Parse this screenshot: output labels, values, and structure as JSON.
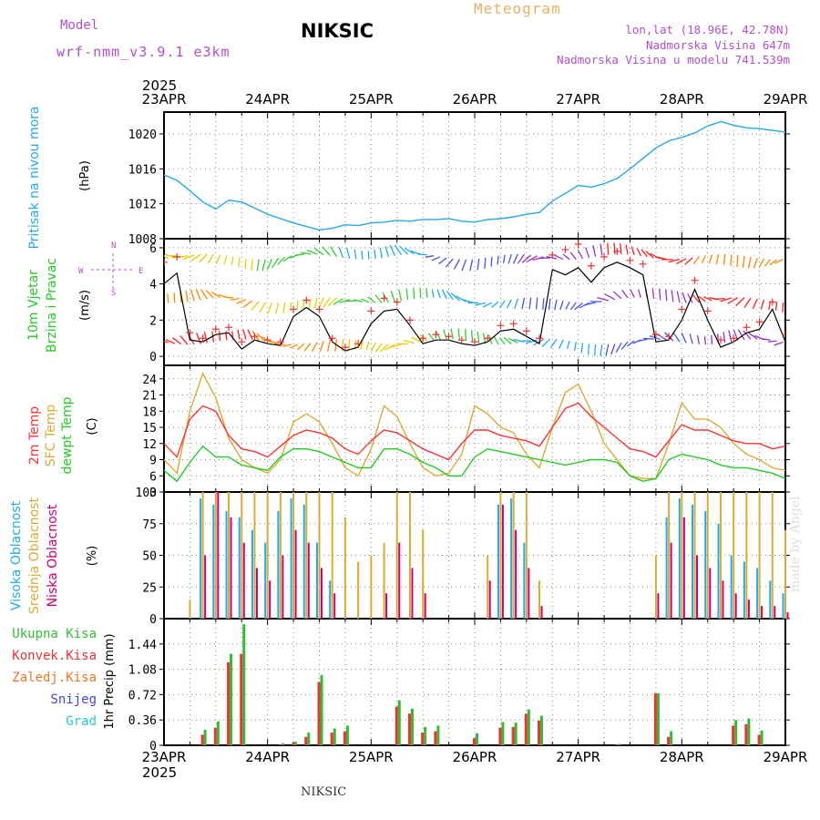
{
  "header": {
    "model_label": "Model",
    "model_name": "wrf-nmm_v3.9.1 e3km",
    "station": "NIKSIC",
    "meteogram": "Meteogram",
    "coords": "lon,lat (18.96E, 42.78N)",
    "altitude": "Nadmorska Visina 647m",
    "model_altitude": "Nadmorska Visina u modelu 741.539m",
    "footer_station": "NIKSIC",
    "credit": "made by Angel"
  },
  "colors": {
    "pressure": "#22aaee",
    "temp": "#ff3333",
    "sfc": "#ddaa33",
    "dew": "#22cc22",
    "high_cloud": "#22aaee",
    "mid_cloud": "#ddaa33",
    "low_cloud": "#cc0077",
    "total_precip": "#33bb33",
    "conv_precip": "#ee3333",
    "grid": "#888888",
    "wind_speed": "#000000",
    "gust": "#ee3333"
  },
  "chart_data": [
    {
      "type": "line",
      "title": "Pritisak na nivou mora",
      "ylabel": "(hPa)",
      "ylim": [
        1008,
        1022.5
      ],
      "yticks": [
        "1008",
        "1012",
        "1016",
        "1020"
      ],
      "x": [
        0,
        3,
        6,
        9,
        12,
        15,
        18,
        21,
        24,
        27,
        30,
        33,
        36,
        39,
        42,
        45,
        48,
        51,
        54,
        57,
        60,
        63,
        66,
        69,
        72,
        75,
        78,
        81,
        84,
        87,
        90,
        93,
        96,
        99,
        102,
        105,
        108,
        111,
        114,
        117,
        120,
        123,
        126,
        129,
        132,
        135,
        138,
        141,
        144
      ],
      "series": [
        {
          "name": "MSLP",
          "values": [
            1015.3,
            1014.7,
            1013.5,
            1012.2,
            1011.4,
            1012.4,
            1012.2,
            1011.5,
            1010.8,
            1010.3,
            1009.8,
            1009.4,
            1009.0,
            1009.2,
            1009.6,
            1009.5,
            1009.8,
            1009.9,
            1010.1,
            1010.0,
            1010.2,
            1010.2,
            1010.3,
            1010.0,
            1009.9,
            1010.2,
            1010.3,
            1010.5,
            1010.8,
            1011.0,
            1012.3,
            1013.2,
            1014.1,
            1013.9,
            1014.3,
            1014.9,
            1016.0,
            1017.2,
            1018.4,
            1019.2,
            1019.6,
            1020.1,
            1020.9,
            1021.4,
            1021.0,
            1020.7,
            1020.6,
            1020.4,
            1020.2
          ]
        }
      ]
    },
    {
      "type": "line",
      "title": "10m Vjetar Brzina i Pravac",
      "ylabel": "(m/s)",
      "ylim": [
        -0.5,
        6.5
      ],
      "yticks": [
        "0",
        "2",
        "4",
        "6"
      ],
      "direction_legend": {
        "north": "N",
        "east": "E",
        "south": "S",
        "west": "W"
      },
      "x": [
        0,
        3,
        6,
        9,
        12,
        15,
        18,
        21,
        24,
        27,
        30,
        33,
        36,
        39,
        42,
        45,
        48,
        51,
        54,
        57,
        60,
        63,
        66,
        69,
        72,
        75,
        78,
        81,
        84,
        87,
        90,
        93,
        96,
        99,
        102,
        105,
        108,
        111,
        114,
        117,
        120,
        123,
        126,
        129,
        132,
        135,
        138,
        141,
        144
      ],
      "series": [
        {
          "name": "Brzina",
          "values": [
            4.0,
            4.6,
            0.9,
            0.8,
            1.2,
            1.3,
            0.4,
            0.9,
            0.7,
            0.6,
            2.2,
            2.7,
            2.2,
            0.8,
            0.3,
            0.5,
            1.8,
            2.5,
            2.6,
            1.7,
            0.7,
            0.9,
            0.9,
            0.7,
            0.6,
            0.8,
            1.4,
            1.5,
            1.1,
            0.7,
            4.8,
            4.5,
            4.9,
            4.1,
            4.9,
            5.2,
            4.9,
            4.5,
            0.8,
            0.9,
            2.0,
            3.7,
            2.0,
            0.5,
            0.8,
            1.3,
            1.5,
            2.6,
            0.8
          ]
        },
        {
          "name": "Udari",
          "values": [
            5.2,
            5.5,
            1.3,
            1.0,
            1.5,
            1.6,
            0.8,
            1.1,
            0.9,
            0.8,
            2.6,
            3.1,
            2.6,
            1.0,
            0.5,
            0.7,
            2.5,
            3.2,
            3.0,
            2.0,
            1.0,
            1.2,
            1.1,
            0.9,
            0.8,
            1.0,
            1.7,
            1.8,
            1.4,
            1.0,
            5.6,
            5.9,
            6.2,
            5.0,
            5.5,
            5.8,
            5.3,
            5.1,
            1.2,
            1.1,
            2.6,
            4.2,
            2.5,
            0.9,
            1.0,
            1.6,
            1.9,
            3.0,
            1.2
          ]
        }
      ]
    },
    {
      "type": "line",
      "title": "2m Temp / SFC Temp / dewpt Temp",
      "ylabel": "(C)",
      "ylim": [
        3,
        26.5
      ],
      "yticks": [
        "3",
        "6",
        "9",
        "12",
        "15",
        "18",
        "21",
        "24"
      ],
      "x": [
        0,
        3,
        6,
        9,
        12,
        15,
        18,
        21,
        24,
        27,
        30,
        33,
        36,
        39,
        42,
        45,
        48,
        51,
        54,
        57,
        60,
        63,
        66,
        69,
        72,
        75,
        78,
        81,
        84,
        87,
        90,
        93,
        96,
        99,
        102,
        105,
        108,
        111,
        114,
        117,
        120,
        123,
        126,
        129,
        132,
        135,
        138,
        141,
        144
      ],
      "series": [
        {
          "name": "2m Temp",
          "values": [
            12.0,
            9.5,
            16.5,
            19.0,
            18.0,
            13.5,
            11.0,
            10.5,
            9.5,
            11.5,
            13.5,
            14.5,
            14.0,
            13.0,
            11.0,
            10.0,
            12.5,
            14.5,
            14.0,
            12.5,
            11.0,
            10.0,
            9.0,
            12.0,
            14.5,
            14.5,
            13.5,
            13.0,
            12.5,
            11.5,
            15.0,
            18.5,
            19.5,
            17.0,
            15.0,
            13.0,
            11.0,
            10.5,
            9.5,
            12.5,
            15.5,
            14.5,
            14.5,
            13.5,
            12.5,
            12.0,
            12.0,
            11.0,
            11.5
          ]
        },
        {
          "name": "SFC Temp",
          "values": [
            9.0,
            6.5,
            18.0,
            25.0,
            20.5,
            13.0,
            9.0,
            7.5,
            6.5,
            9.0,
            16.0,
            17.5,
            16.0,
            12.0,
            7.5,
            6.0,
            11.0,
            19.0,
            17.0,
            12.0,
            7.5,
            6.0,
            6.5,
            10.0,
            19.0,
            17.5,
            15.0,
            14.0,
            10.0,
            7.5,
            15.0,
            21.5,
            23.0,
            18.0,
            12.0,
            9.0,
            6.0,
            5.5,
            5.5,
            12.0,
            19.5,
            16.5,
            16.5,
            15.0,
            12.0,
            10.0,
            9.0,
            7.5,
            7.0
          ]
        },
        {
          "name": "dewpt Temp",
          "values": [
            7.0,
            5.0,
            8.5,
            11.5,
            9.5,
            9.5,
            8.0,
            7.5,
            7.0,
            9.5,
            11.0,
            11.0,
            10.5,
            9.5,
            8.5,
            7.5,
            7.5,
            11.0,
            11.0,
            10.0,
            8.5,
            7.5,
            6.0,
            6.0,
            9.5,
            11.0,
            10.5,
            10.0,
            9.5,
            9.0,
            8.5,
            8.0,
            8.5,
            9.0,
            9.0,
            8.5,
            6.0,
            5.0,
            5.5,
            9.0,
            10.0,
            9.5,
            9.0,
            8.0,
            7.5,
            7.5,
            7.0,
            6.5,
            5.5
          ]
        }
      ]
    },
    {
      "type": "bar",
      "title": "Visoka Oblacnost / Srednja Oblacnost / Niska Oblacnost",
      "ylabel": "(%)",
      "ylim": [
        0,
        100
      ],
      "yticks": [
        "0",
        "25",
        "50",
        "75",
        "100"
      ],
      "x": [
        0,
        3,
        6,
        9,
        12,
        15,
        18,
        21,
        24,
        27,
        30,
        33,
        36,
        39,
        42,
        45,
        48,
        51,
        54,
        57,
        60,
        63,
        66,
        69,
        72,
        75,
        78,
        81,
        84,
        87,
        90,
        93,
        96,
        99,
        102,
        105,
        108,
        111,
        114,
        117,
        120,
        123,
        126,
        129,
        132,
        135,
        138,
        141,
        144
      ],
      "series": [
        {
          "name": "Visoka Oblacnost",
          "values": [
            0,
            0,
            0,
            95,
            90,
            85,
            80,
            70,
            60,
            85,
            95,
            90,
            60,
            30,
            0,
            0,
            0,
            0,
            0,
            0,
            0,
            0,
            0,
            0,
            0,
            0,
            90,
            95,
            60,
            0,
            0,
            0,
            0,
            0,
            0,
            0,
            0,
            0,
            0,
            80,
            95,
            90,
            85,
            75,
            50,
            45,
            40,
            30,
            20
          ]
        },
        {
          "name": "Srednja Oblacnost",
          "values": [
            0,
            0,
            15,
            100,
            100,
            100,
            100,
            100,
            100,
            100,
            100,
            100,
            100,
            100,
            80,
            45,
            50,
            60,
            100,
            100,
            70,
            0,
            0,
            0,
            0,
            50,
            100,
            100,
            100,
            30,
            0,
            0,
            0,
            0,
            0,
            0,
            0,
            0,
            50,
            100,
            100,
            100,
            100,
            100,
            100,
            100,
            100,
            100,
            70
          ]
        },
        {
          "name": "Niska Oblacnost",
          "values": [
            0,
            0,
            0,
            50,
            100,
            80,
            60,
            40,
            30,
            50,
            70,
            60,
            40,
            20,
            0,
            0,
            0,
            20,
            60,
            40,
            20,
            0,
            0,
            0,
            0,
            30,
            90,
            70,
            40,
            10,
            0,
            0,
            0,
            0,
            0,
            0,
            0,
            0,
            20,
            60,
            80,
            50,
            40,
            30,
            20,
            15,
            10,
            10,
            5
          ]
        }
      ]
    },
    {
      "type": "bar",
      "title": "1hr Precip",
      "ylabel": "1hr Precip (mm)",
      "ylim": [
        0,
        1.8
      ],
      "yticks": [
        "0",
        "0.36",
        "0.72",
        "1.08",
        "1.44"
      ],
      "legend": [
        "Ukupna Kisa",
        "Konvek.Kisa",
        "Zaledj.Kisa",
        "Snijeg",
        "Grad"
      ],
      "x": [
        0,
        3,
        6,
        9,
        12,
        15,
        18,
        21,
        24,
        27,
        30,
        33,
        36,
        39,
        42,
        45,
        48,
        51,
        54,
        57,
        60,
        63,
        66,
        69,
        72,
        75,
        78,
        81,
        84,
        87,
        90,
        93,
        96,
        99,
        102,
        105,
        108,
        111,
        114,
        117,
        120,
        123,
        126,
        129,
        132,
        135,
        138,
        141,
        144
      ],
      "series": [
        {
          "name": "Ukupna Kisa",
          "values": [
            0,
            0,
            0,
            0.22,
            0.34,
            1.3,
            1.72,
            0,
            0,
            0.03,
            0.05,
            0.18,
            1.0,
            0.24,
            0.28,
            0,
            0,
            0,
            0.64,
            0.52,
            0.26,
            0.28,
            0,
            0,
            0.17,
            0,
            0.33,
            0.32,
            0.51,
            0.42,
            0,
            0,
            0,
            0,
            0,
            0.02,
            0,
            0,
            0.74,
            0.2,
            0,
            0,
            0,
            0,
            0.36,
            0.38,
            0.21,
            0,
            0
          ]
        },
        {
          "name": "Konvek.Kisa",
          "values": [
            0,
            0,
            0,
            0.15,
            0.25,
            1.18,
            1.3,
            0,
            0,
            0.01,
            0.03,
            0.12,
            0.9,
            0.18,
            0.2,
            0,
            0,
            0,
            0.55,
            0.45,
            0.18,
            0.2,
            0,
            0,
            0.1,
            0,
            0.25,
            0.26,
            0.45,
            0.35,
            0,
            0,
            0,
            0,
            0,
            0.01,
            0,
            0,
            0.74,
            0.12,
            0,
            0,
            0,
            0,
            0.28,
            0.3,
            0.15,
            0,
            0
          ]
        }
      ]
    }
  ],
  "axis": {
    "year": "2025",
    "x_min": 0,
    "x_max": 144,
    "days": [
      {
        "label": "23APR",
        "hour": 0
      },
      {
        "label": "24APR",
        "hour": 24
      },
      {
        "label": "25APR",
        "hour": 48
      },
      {
        "label": "26APR",
        "hour": 72
      },
      {
        "label": "27APR",
        "hour": 96
      },
      {
        "label": "28APR",
        "hour": 120
      },
      {
        "label": "29APR",
        "hour": 144
      }
    ]
  },
  "panel_labels": {
    "pressure": [
      "Pritisak na nivou mora"
    ],
    "pressure_unit": "(hPa)",
    "wind": [
      "10m Vjetar",
      "Brzina i Pravac"
    ],
    "wind_unit": "(m/s)",
    "temp": [
      {
        "text": "2m Temp",
        "color": "temp"
      },
      {
        "text": "SFC Temp",
        "color": "sfc"
      },
      {
        "text": "dewpt Temp",
        "color": "dew"
      }
    ],
    "temp_unit": "(C)",
    "cloud": [
      {
        "text": "Visoka Oblacnost",
        "color": "high_cloud"
      },
      {
        "text": "Srednja Oblacnost",
        "color": "mid_cloud"
      },
      {
        "text": "Niska Oblacnost",
        "color": "low_cloud"
      }
    ],
    "cloud_unit": "(%)",
    "precip": [
      {
        "text": "Ukupna Kisa",
        "color": "#33bb33"
      },
      {
        "text": "Konvek.Kisa",
        "color": "#ee3333"
      },
      {
        "text": "Zaledj.Kisa",
        "color": "#ee7722"
      },
      {
        "text": "Snijeg",
        "color": "#4444ee"
      },
      {
        "text": "Grad",
        "color": "#22cccc"
      }
    ],
    "precip_unit": "1hr Precip (mm)"
  }
}
